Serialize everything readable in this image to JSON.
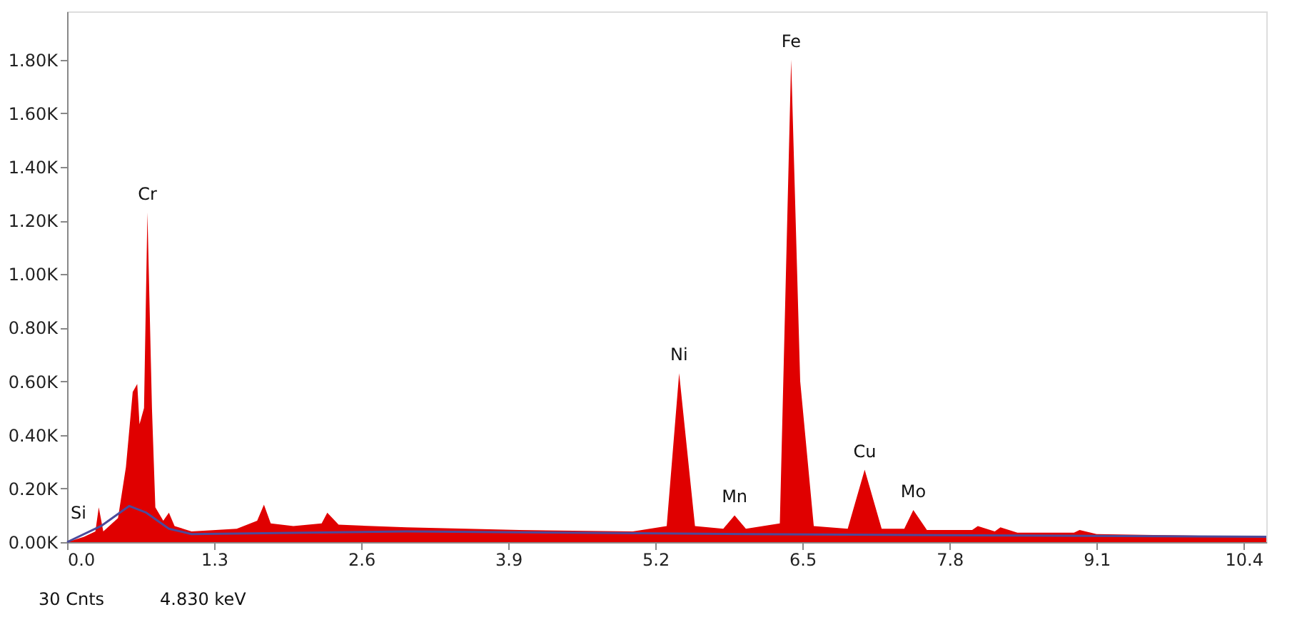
{
  "chart_data": {
    "type": "area",
    "xlim": [
      0,
      10.6
    ],
    "xticks": [
      {
        "value": 0,
        "label": "0.0"
      },
      1.3,
      2.6,
      3.9,
      5.2,
      6.5,
      7.8,
      9.1,
      10.4
    ],
    "ylim": [
      0,
      1980
    ],
    "yticks": [
      {
        "value": 0,
        "label": "0.00K"
      },
      {
        "value": 200,
        "label": "0.20K"
      },
      {
        "value": 400,
        "label": "0.40K"
      },
      {
        "value": 600,
        "label": "0.60K"
      },
      {
        "value": 800,
        "label": "0.80K"
      },
      {
        "value": 1000,
        "label": "1.00K"
      },
      {
        "value": 1200,
        "label": "1.20K"
      },
      {
        "value": 1400,
        "label": "1.40K"
      },
      {
        "value": 1600,
        "label": "1.60K"
      },
      {
        "value": 1800,
        "label": "1.80K"
      }
    ],
    "grid": false,
    "series": [
      {
        "type": "area",
        "color": "#e00000",
        "x": [
          0,
          0.15,
          0.25,
          0.28,
          0.32,
          0.45,
          0.52,
          0.58,
          0.62,
          0.64,
          0.68,
          0.71,
          0.75,
          0.78,
          0.85,
          0.9,
          0.95,
          1.1,
          1.5,
          1.68,
          1.74,
          1.8,
          2.0,
          2.25,
          2.3,
          2.4,
          3.0,
          4.0,
          5.0,
          5.3,
          5.41,
          5.55,
          5.8,
          5.9,
          6.0,
          6.3,
          6.4,
          6.48,
          6.6,
          6.9,
          7.05,
          7.2,
          7.4,
          7.48,
          7.6,
          8.0,
          8.05,
          8.2,
          8.25,
          8.4,
          8.9,
          8.95,
          9.1,
          10.6
        ],
        "values": [
          0,
          20,
          40,
          130,
          40,
          90,
          280,
          560,
          590,
          440,
          500,
          1230,
          500,
          130,
          80,
          110,
          60,
          40,
          50,
          80,
          140,
          70,
          60,
          70,
          110,
          65,
          55,
          45,
          40,
          60,
          630,
          60,
          50,
          100,
          50,
          70,
          1800,
          600,
          60,
          50,
          270,
          50,
          50,
          120,
          45,
          45,
          60,
          40,
          55,
          35,
          35,
          45,
          30,
          20
        ]
      },
      {
        "type": "line",
        "color": "#4b4b9b",
        "x": [
          0,
          0.3,
          0.55,
          0.7,
          0.9,
          1.1,
          3.0,
          6.0,
          10.6
        ],
        "values": [
          0,
          60,
          135,
          110,
          50,
          30,
          40,
          30,
          20
        ]
      }
    ],
    "annotations": [
      {
        "text": "Si",
        "x": 0.1,
        "y": 40
      },
      {
        "text": "Cr",
        "x": 0.71,
        "y": 1230
      },
      {
        "text": "Ni",
        "x": 5.41,
        "y": 630
      },
      {
        "text": "Mn",
        "x": 5.9,
        "y": 100
      },
      {
        "text": "Fe",
        "x": 6.4,
        "y": 1800
      },
      {
        "text": "Cu",
        "x": 7.05,
        "y": 270
      },
      {
        "text": "Mo",
        "x": 7.48,
        "y": 120
      },
      "30 Cnts",
      "4.830 keV"
    ]
  }
}
